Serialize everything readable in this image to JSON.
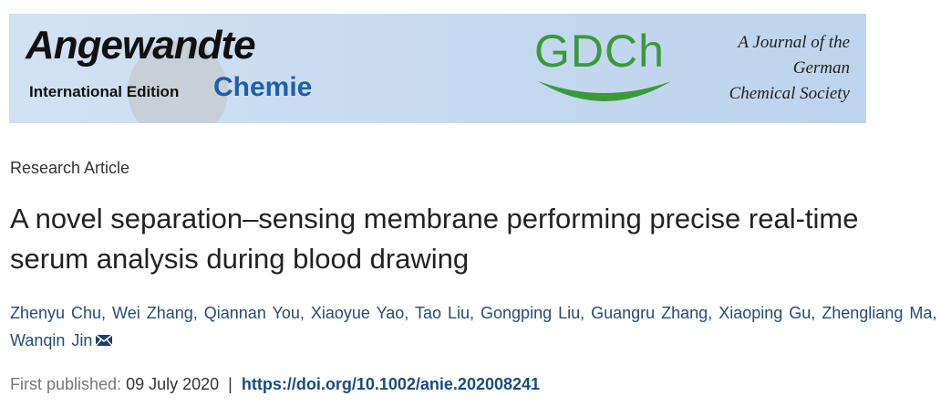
{
  "banner": {
    "journal_word": "Angewandte",
    "edition": "International Edition",
    "journal_name": "Chemie",
    "society_logo": "GDCh",
    "society_line1": "A Journal of the",
    "society_line2": "German",
    "society_line3": "Chemical Society"
  },
  "article": {
    "type": "Research Article",
    "title": "A novel separation–sensing membrane performing precise real-time serum analysis during blood drawing",
    "authors": "Zhenyu Chu, Wei Zhang, Qiannan You, Xiaoyue Yao, Tao Liu, Gongping Liu, Guangru Zhang, Xiaoping Gu, Zhengliang Ma, Wanqin Jin",
    "published_label": "First published:",
    "published_date": "09 July 2020",
    "separator": "|",
    "doi": "https://doi.org/10.1002/anie.202008241"
  }
}
